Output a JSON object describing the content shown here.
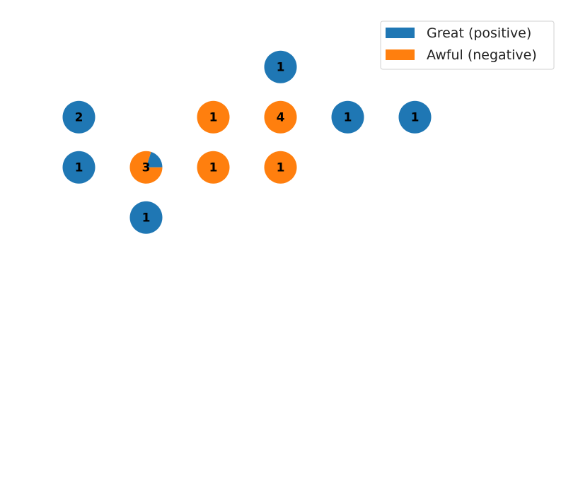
{
  "chart_data": {
    "type": "pie-scatter",
    "title": "",
    "xlabel": "",
    "ylabel": "",
    "axes_visible": false,
    "grid": false,
    "legend_position": "top-right",
    "series": [
      {
        "name": "Great (positive)",
        "color": "#1f77b4"
      },
      {
        "name": "Awful (negative)",
        "color": "#ff7f0e"
      }
    ],
    "xlim": [
      0,
      7
    ],
    "ylim": [
      0,
      8
    ],
    "points": [
      {
        "x": 4,
        "y": 7,
        "count": 1,
        "great": 1,
        "awful": 0
      },
      {
        "x": 1,
        "y": 6,
        "count": 2,
        "great": 2,
        "awful": 0
      },
      {
        "x": 3,
        "y": 6,
        "count": 1,
        "great": 0,
        "awful": 1
      },
      {
        "x": 4,
        "y": 6,
        "count": 4,
        "great": 0,
        "awful": 4
      },
      {
        "x": 5,
        "y": 6,
        "count": 1,
        "great": 1,
        "awful": 0
      },
      {
        "x": 6,
        "y": 6,
        "count": 1,
        "great": 1,
        "awful": 0
      },
      {
        "x": 1,
        "y": 5,
        "count": 1,
        "great": 1,
        "awful": 0
      },
      {
        "x": 2,
        "y": 5,
        "count": 3,
        "great": 0.6,
        "awful": 2.4
      },
      {
        "x": 3,
        "y": 5,
        "count": 1,
        "great": 0,
        "awful": 1
      },
      {
        "x": 4,
        "y": 5,
        "count": 1,
        "great": 0,
        "awful": 1
      },
      {
        "x": 2,
        "y": 4,
        "count": 1,
        "great": 1,
        "awful": 0
      }
    ]
  }
}
